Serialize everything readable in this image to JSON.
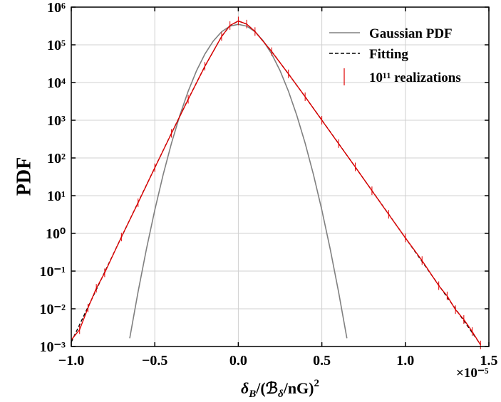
{
  "chart_data": {
    "type": "line",
    "ylabel": "PDF",
    "xlabel": [
      "δ",
      "B",
      "/(ℬ",
      "δ",
      "/nG)",
      "2"
    ],
    "x_offset_label": "×10⁻⁵",
    "log_y": true,
    "grid": true,
    "legend": "upper right",
    "xlim": [
      -1.0,
      1.5
    ],
    "ylim": [
      0.001,
      1000000
    ],
    "xticks": [
      {
        "value": -1.0,
        "label": "−1.0"
      },
      {
        "value": -0.5,
        "label": "−0.5"
      },
      {
        "value": 0.0,
        "label": "0.0"
      },
      {
        "value": 0.5,
        "label": "0.5"
      },
      {
        "value": 1.0,
        "label": "1.0"
      },
      {
        "value": 1.5,
        "label": "1.5"
      }
    ],
    "yticks": [
      {
        "value": 0.001,
        "label": "10⁻³"
      },
      {
        "value": 0.01,
        "label": "10⁻²"
      },
      {
        "value": 0.1,
        "label": "10⁻¹"
      },
      {
        "value": 1,
        "label": "10⁰"
      },
      {
        "value": 10,
        "label": "10¹"
      },
      {
        "value": 100,
        "label": "10²"
      },
      {
        "value": 1000,
        "label": "10³"
      },
      {
        "value": 10000,
        "label": "10⁴"
      },
      {
        "value": 100000,
        "label": "10⁵"
      },
      {
        "value": 1000000,
        "label": "10⁶"
      }
    ],
    "series": [
      {
        "name": "Gaussian PDF",
        "color": "#808080",
        "style": "solid",
        "x": [
          -0.65,
          -0.6,
          -0.55,
          -0.5,
          -0.45,
          -0.4,
          -0.35,
          -0.3,
          -0.25,
          -0.2,
          -0.15,
          -0.1,
          -0.05,
          0.0,
          0.05,
          0.1,
          0.15,
          0.2,
          0.25,
          0.3,
          0.35,
          0.4,
          0.45,
          0.5,
          0.55,
          0.6,
          0.65
        ],
        "values": [
          0.00166,
          0.0283,
          0.385,
          4.16,
          35.9,
          247,
          1350,
          5900,
          20600,
          57000,
          126000,
          222000,
          313000,
          350000,
          313000,
          222000,
          126000,
          57000,
          20600,
          5900,
          1350,
          247,
          35.9,
          4.16,
          0.385,
          0.0283,
          0.00166
        ]
      },
      {
        "name": "Fitting",
        "color": "#000000",
        "style": "dashed",
        "x": [
          -1.0,
          -0.9,
          -0.8,
          -0.7,
          -0.6,
          -0.5,
          -0.4,
          -0.3,
          -0.2,
          -0.1,
          -0.05,
          0.0,
          0.05,
          0.1,
          0.2,
          0.3,
          0.4,
          0.5,
          0.6,
          0.7,
          0.8,
          0.9,
          1.0,
          1.1,
          1.2,
          1.3,
          1.4,
          1.45
        ],
        "values": [
          0.0013,
          0.0111,
          0.094,
          0.79,
          6.6,
          55,
          454,
          3620,
          27100,
          166000,
          324000,
          427000,
          354000,
          225000,
          66400,
          17000,
          4190,
          1010,
          242,
          57.5,
          13.6,
          3.22,
          0.76,
          0.18,
          0.042,
          0.00995,
          0.00234,
          0.00113
        ]
      },
      {
        "name": "10¹¹ realizations",
        "color": "#e00000",
        "style": "errorbar",
        "x": [
          -1.0,
          -0.95,
          -0.9,
          -0.85,
          -0.8,
          -0.7,
          -0.6,
          -0.5,
          -0.4,
          -0.3,
          -0.2,
          -0.1,
          -0.05,
          0.0,
          0.05,
          0.1,
          0.2,
          0.3,
          0.4,
          0.5,
          0.6,
          0.7,
          0.8,
          0.9,
          1.0,
          1.1,
          1.2,
          1.25,
          1.3,
          1.35,
          1.4,
          1.45
        ],
        "values": [
          0.0015,
          0.0028,
          0.0105,
          0.035,
          0.09,
          0.8,
          6.5,
          55,
          450,
          3600,
          27000,
          166000,
          325000,
          430000,
          355000,
          225000,
          66000,
          17000,
          4200,
          1000,
          240,
          58,
          13.5,
          3.2,
          0.76,
          0.19,
          0.041,
          0.022,
          0.0095,
          0.0052,
          0.0025,
          0.0011
        ]
      }
    ]
  }
}
